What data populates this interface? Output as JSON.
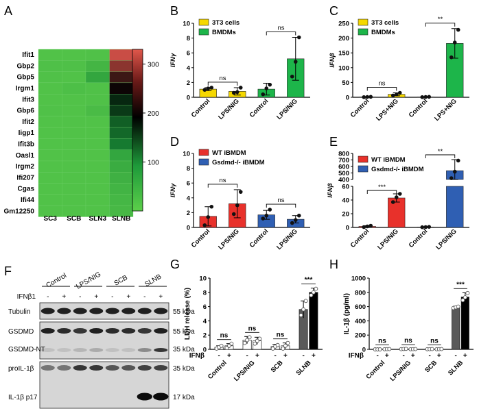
{
  "colors": {
    "yellow": "#f5d800",
    "green": "#1db54a",
    "red": "#e8312b",
    "blue": "#2f5fb3",
    "dark_gray": "#5a5a5a",
    "black": "#000000",
    "heat_low": "#57c84a",
    "heat_mid": "#000000",
    "heat_high": "#d9534a"
  },
  "panels": {
    "A": "A",
    "B": "B",
    "C": "C",
    "D": "D",
    "E": "E",
    "F": "F",
    "G": "G",
    "H": "H"
  },
  "heatmap": {
    "rows": [
      "Ifit1",
      "Gbp2",
      "Gbp5",
      "Irgm1",
      "Ifit3",
      "Gbp6",
      "Ifit2",
      "Iigp1",
      "Ifit3b",
      "Oasl1",
      "Irgm2",
      "Ifi207",
      "Cgas",
      "Ifi44",
      "Gm12250"
    ],
    "cols": [
      "SC3",
      "SCB",
      "SLN3",
      "SLNB"
    ],
    "values": [
      [
        20,
        20,
        22,
        320
      ],
      [
        25,
        24,
        60,
        280
      ],
      [
        22,
        20,
        110,
        230
      ],
      [
        20,
        30,
        22,
        200
      ],
      [
        20,
        20,
        22,
        170
      ],
      [
        22,
        20,
        40,
        160
      ],
      [
        18,
        18,
        20,
        140
      ],
      [
        18,
        18,
        18,
        135
      ],
      [
        18,
        18,
        18,
        125
      ],
      [
        18,
        18,
        18,
        110
      ],
      [
        18,
        18,
        18,
        90
      ],
      [
        18,
        18,
        18,
        75
      ],
      [
        18,
        18,
        18,
        65
      ],
      [
        18,
        18,
        18,
        55
      ],
      [
        18,
        18,
        18,
        50
      ]
    ],
    "colorbar_ticks": [
      "300",
      "200",
      "100"
    ],
    "colorbar_tick_values": [
      300,
      200,
      100
    ],
    "colorbar_range": [
      0,
      330
    ]
  },
  "chart_data": [
    {
      "panel": "B",
      "type": "bar",
      "ylabel": "IFNγ",
      "ylim": [
        0,
        10
      ],
      "yticks": [
        0,
        2,
        4,
        6,
        8,
        10
      ],
      "categories": [
        "Control",
        "LPS/NIG",
        "Control",
        "LPS/NIG"
      ],
      "values": [
        1.1,
        0.8,
        1.1,
        5.2
      ],
      "errors": [
        0.2,
        0.5,
        0.8,
        2.9
      ],
      "points": [
        [
          1.0,
          1.2,
          1.3
        ],
        [
          0.6,
          0.7,
          1.3
        ],
        [
          0.4,
          1.2,
          1.7
        ],
        [
          2.8,
          4.8,
          8.1
        ]
      ],
      "bar_colors": [
        "yellow",
        "yellow",
        "green",
        "green"
      ],
      "legend": [
        "3T3 cells",
        "BMDMs"
      ],
      "legend_colors": [
        "yellow",
        "green"
      ],
      "brackets": [
        {
          "from": 0,
          "to": 1,
          "label": "ns"
        },
        {
          "from": 2,
          "to": 3,
          "label": "ns"
        }
      ]
    },
    {
      "panel": "C",
      "type": "bar",
      "ylabel": "IFNβ",
      "ylim": [
        0,
        250
      ],
      "yticks": [
        0,
        50,
        100,
        150,
        200,
        250
      ],
      "categories": [
        "Control",
        "LPS+NIG",
        "Control",
        "LPS+NIG"
      ],
      "values": [
        1,
        10,
        1,
        182
      ],
      "errors": [
        0.5,
        5,
        0.5,
        50
      ],
      "points": [
        [
          0.5,
          1,
          1.5
        ],
        [
          6,
          10,
          15
        ],
        [
          0.5,
          1,
          1.5
        ],
        [
          135,
          185,
          228
        ]
      ],
      "bar_colors": [
        "yellow",
        "yellow",
        "green",
        "green"
      ],
      "legend": [
        "3T3 cells",
        "BMDMs"
      ],
      "legend_colors": [
        "yellow",
        "green"
      ],
      "brackets": [
        {
          "from": 0,
          "to": 1,
          "label": "ns"
        },
        {
          "from": 2,
          "to": 3,
          "label": "**"
        }
      ]
    },
    {
      "panel": "D",
      "type": "bar",
      "ylabel": "IFNγ",
      "ylim": [
        0,
        10
      ],
      "yticks": [
        0,
        2,
        4,
        6,
        8,
        10
      ],
      "categories": [
        "Control",
        "LPS/NIG",
        "Control",
        "LPS/NIG"
      ],
      "values": [
        1.5,
        3.2,
        1.7,
        1.1
      ],
      "errors": [
        1.3,
        1.9,
        0.6,
        0.5
      ],
      "points": [
        [
          0.3,
          1.4,
          2.8
        ],
        [
          1.8,
          3.0,
          4.8
        ],
        [
          1.2,
          1.6,
          2.4
        ],
        [
          0.6,
          1.0,
          1.6
        ]
      ],
      "bar_colors": [
        "red",
        "red",
        "blue",
        "blue"
      ],
      "legend": [
        "WT iBMDM",
        "Gsdmd-/- iBMDM"
      ],
      "legend_colors": [
        "red",
        "blue"
      ],
      "brackets": [
        {
          "from": 0,
          "to": 1,
          "label": "ns"
        },
        {
          "from": 2,
          "to": 3,
          "label": "ns"
        }
      ]
    },
    {
      "panel": "E",
      "type": "bar",
      "ylabel": "IFNβ",
      "yticks_low": [
        "0",
        "20",
        "40",
        "60"
      ],
      "yticks_high": [
        "400",
        "500",
        "600",
        "700",
        "800"
      ],
      "categories": [
        "Control",
        "LPS/NIG",
        "Control",
        "LPS/NIG"
      ],
      "values": [
        1.5,
        43,
        0.5,
        535
      ],
      "errors": [
        1,
        6,
        0.3,
        170
      ],
      "points": [
        [
          0.5,
          1.5,
          2.5
        ],
        [
          37,
          44,
          49
        ],
        [
          0.3,
          0.5,
          0.8
        ],
        [
          420,
          520,
          690
        ]
      ],
      "bar_colors": [
        "red",
        "red",
        "blue",
        "blue"
      ],
      "legend": [
        "WT iBMDM",
        "Gsdmd-/- iBMDM"
      ],
      "legend_colors": [
        "red",
        "blue"
      ],
      "brackets": [
        {
          "from": 0,
          "to": 1,
          "label": "***"
        },
        {
          "from": 2,
          "to": 3,
          "label": "**"
        }
      ]
    },
    {
      "panel": "G",
      "type": "bar",
      "ylabel": "LDH release (%)",
      "ylim": [
        0,
        10
      ],
      "yticks": [
        0,
        2,
        4,
        6,
        8,
        10
      ],
      "groups": [
        "Control",
        "LPS/NIG",
        "SCB",
        "SLNB"
      ],
      "treatment_label": "IFNβ",
      "treatment_signs": [
        "-",
        "+"
      ],
      "values": [
        0.3,
        0.5,
        1.3,
        1.2,
        0.4,
        0.5,
        5.6,
        8.0
      ],
      "errors": [
        0.2,
        0.3,
        0.5,
        0.5,
        0.3,
        0.4,
        1.2,
        0.6
      ],
      "points": [
        [
          0.1,
          0.3,
          0.5
        ],
        [
          0.2,
          0.5,
          0.8
        ],
        [
          0.9,
          1.3,
          1.7
        ],
        [
          0.8,
          1.2,
          1.5
        ],
        [
          0.1,
          0.4,
          0.6
        ],
        [
          0.1,
          0.5,
          0.9
        ],
        [
          4.8,
          5.6,
          6.8
        ],
        [
          7.6,
          8.0,
          8.5
        ]
      ],
      "bar_colors": [
        "white",
        "white",
        "white",
        "white",
        "white",
        "white",
        "dark_gray",
        "black"
      ],
      "sig": [
        "ns",
        "ns",
        "ns",
        "***"
      ]
    },
    {
      "panel": "H",
      "type": "bar",
      "ylabel": "IL-1β  (pg/ml)",
      "ylim": [
        0,
        1000
      ],
      "yticks": [
        0,
        200,
        400,
        600,
        800,
        1000
      ],
      "groups": [
        "Control",
        "LPS/NIG",
        "SCB",
        "SLNB"
      ],
      "treatment_label": "IFNβ",
      "treatment_signs": [
        "-",
        "+"
      ],
      "values": [
        0,
        3,
        5,
        3,
        3,
        3,
        590,
        735
      ],
      "errors": [
        0,
        2,
        3,
        2,
        2,
        2,
        15,
        60
      ],
      "points": [
        [
          0,
          0,
          0
        ],
        [
          2,
          3,
          4
        ],
        [
          3,
          5,
          7
        ],
        [
          2,
          3,
          4
        ],
        [
          2,
          3,
          4
        ],
        [
          2,
          3,
          4
        ],
        [
          580,
          590,
          600
        ],
        [
          690,
          730,
          790
        ]
      ],
      "bar_colors": [
        "white",
        "white",
        "white",
        "white",
        "white",
        "white",
        "dark_gray",
        "black"
      ],
      "sig": [
        "ns",
        "ns",
        "ns",
        "***"
      ]
    }
  ],
  "western": {
    "conditions": [
      "Control",
      "LPS/NIG",
      "SCB",
      "SLNB"
    ],
    "treatment_label": "IFNβ1",
    "signs": [
      "-",
      "+",
      "-",
      "+",
      "-",
      "+",
      "-",
      "+"
    ],
    "rows": [
      {
        "label": "Tubulin",
        "kda": [
          "55 kDa"
        ]
      },
      {
        "label": "GSDMD",
        "kda": [
          "55 kDa"
        ]
      },
      {
        "label": "GSDMD-NT",
        "kda": [
          "35 kDa"
        ]
      },
      {
        "label": "proIL-1β",
        "kda": [
          "35 kDa"
        ]
      },
      {
        "label": "IL-1β p17",
        "kda": [
          "17 kDa"
        ]
      }
    ]
  }
}
